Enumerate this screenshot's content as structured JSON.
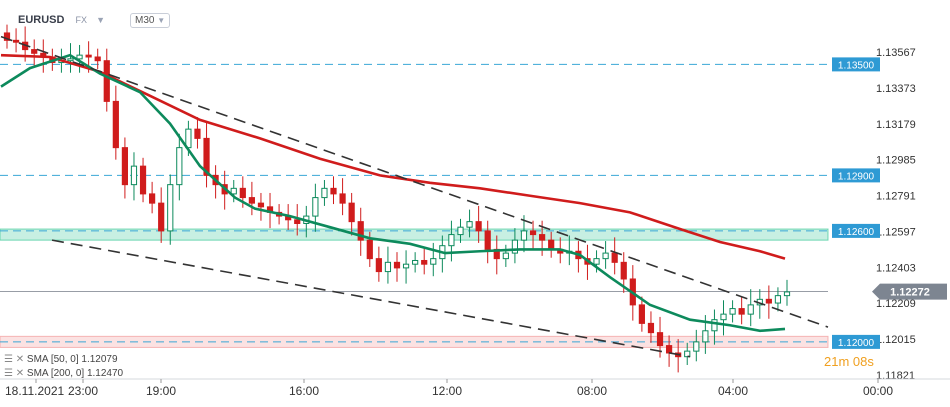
{
  "header": {
    "symbol": "EURUSD",
    "market": "FX",
    "timeframe": "M30"
  },
  "indicators": [
    {
      "label": "SMA [50, 0]",
      "value": "1.12079",
      "color": "#0d8a5c"
    },
    {
      "label": "SMA [200, 0]",
      "value": "1.12470",
      "color": "#d01c1c"
    }
  ],
  "countdown": "21m 08s",
  "chart_data": {
    "type": "candlestick",
    "y_ticks": [
      "1.13567",
      "1.13373",
      "1.13179",
      "1.12985",
      "1.12791",
      "1.12597",
      "1.12403",
      "1.12209",
      "1.12015",
      "1.11821"
    ],
    "x_ticks": [
      "18.11.2021",
      "23:00",
      "19:00",
      "16:00",
      "12:00",
      "08:00",
      "04:00",
      "00:00"
    ],
    "current_price": "1.12272",
    "levels": [
      {
        "label": "1.13500",
        "value": 1.135
      },
      {
        "label": "1.12900",
        "value": 1.129
      },
      {
        "label": "1.12600",
        "value": 1.126
      },
      {
        "label": "1.12000",
        "value": 1.12
      }
    ],
    "zones": [
      {
        "from": 1.1255,
        "to": 1.1261,
        "color": "#21c08a"
      },
      {
        "from": 1.1197,
        "to": 1.1203,
        "color": "#f08c8c"
      }
    ],
    "colors": {
      "up": "#0d8a5c",
      "down": "#d01c1c",
      "level": "#3aa7d6",
      "trend": "#333333",
      "price_tag": "#7d8591"
    },
    "close_path": [
      1.1363,
      1.1362,
      1.1358,
      1.1356,
      1.1354,
      1.1351,
      1.1352,
      1.1353,
      1.1355,
      1.1354,
      1.1352,
      1.133,
      1.1305,
      1.1285,
      1.1295,
      1.128,
      1.1275,
      1.126,
      1.1285,
      1.1305,
      1.1315,
      1.131,
      1.129,
      1.1285,
      1.128,
      1.1283,
      1.1278,
      1.1275,
      1.1273,
      1.127,
      1.1268,
      1.1266,
      1.1264,
      1.1268,
      1.1278,
      1.1283,
      1.128,
      1.1275,
      1.1265,
      1.1255,
      1.1245,
      1.1238,
      1.1243,
      1.124,
      1.1242,
      1.1244,
      1.1242,
      1.1245,
      1.1252,
      1.1258,
      1.1262,
      1.1265,
      1.126,
      1.125,
      1.1245,
      1.1248,
      1.1255,
      1.126,
      1.1258,
      1.1255,
      1.125,
      1.1248,
      1.1249,
      1.1245,
      1.1242,
      1.1245,
      1.1248,
      1.1243,
      1.1234,
      1.122,
      1.121,
      1.1205,
      1.1198,
      1.1194,
      1.1192,
      1.1195,
      1.12,
      1.1206,
      1.1212,
      1.1215,
      1.1218,
      1.1215,
      1.122,
      1.1223,
      1.1221,
      1.1225,
      1.1227
    ],
    "sma50": [
      [
        1,
        1.1338
      ],
      [
        30,
        1.1348
      ],
      [
        70,
        1.1355
      ],
      [
        100,
        1.1345
      ],
      [
        140,
        1.1335
      ],
      [
        170,
        1.1318
      ],
      [
        200,
        1.1295
      ],
      [
        235,
        1.1278
      ],
      [
        255,
        1.1272
      ],
      [
        290,
        1.1268
      ],
      [
        330,
        1.1262
      ],
      [
        370,
        1.1256
      ],
      [
        410,
        1.1253
      ],
      [
        445,
        1.1248
      ],
      [
        480,
        1.1249
      ],
      [
        520,
        1.125
      ],
      [
        560,
        1.125
      ],
      [
        580,
        1.1247
      ],
      [
        610,
        1.1235
      ],
      [
        650,
        1.122
      ],
      [
        690,
        1.1212
      ],
      [
        730,
        1.1209
      ],
      [
        760,
        1.1206
      ],
      [
        785,
        1.1207
      ]
    ],
    "sma200": [
      [
        1,
        1.1355
      ],
      [
        50,
        1.1354
      ],
      [
        100,
        1.1346
      ],
      [
        150,
        1.1333
      ],
      [
        200,
        1.132
      ],
      [
        260,
        1.131
      ],
      [
        320,
        1.1299
      ],
      [
        380,
        1.129
      ],
      [
        430,
        1.1286
      ],
      [
        480,
        1.1283
      ],
      [
        530,
        1.1279
      ],
      [
        580,
        1.1275
      ],
      [
        630,
        1.127
      ],
      [
        680,
        1.1261
      ],
      [
        720,
        1.1254
      ],
      [
        760,
        1.1249
      ],
      [
        785,
        1.1245
      ]
    ],
    "trend_upper": [
      [
        1,
        1.1365
      ],
      [
        828,
        1.1208
      ]
    ],
    "trend_lower": [
      [
        52,
        1.1255
      ],
      [
        690,
        1.1192
      ]
    ]
  }
}
